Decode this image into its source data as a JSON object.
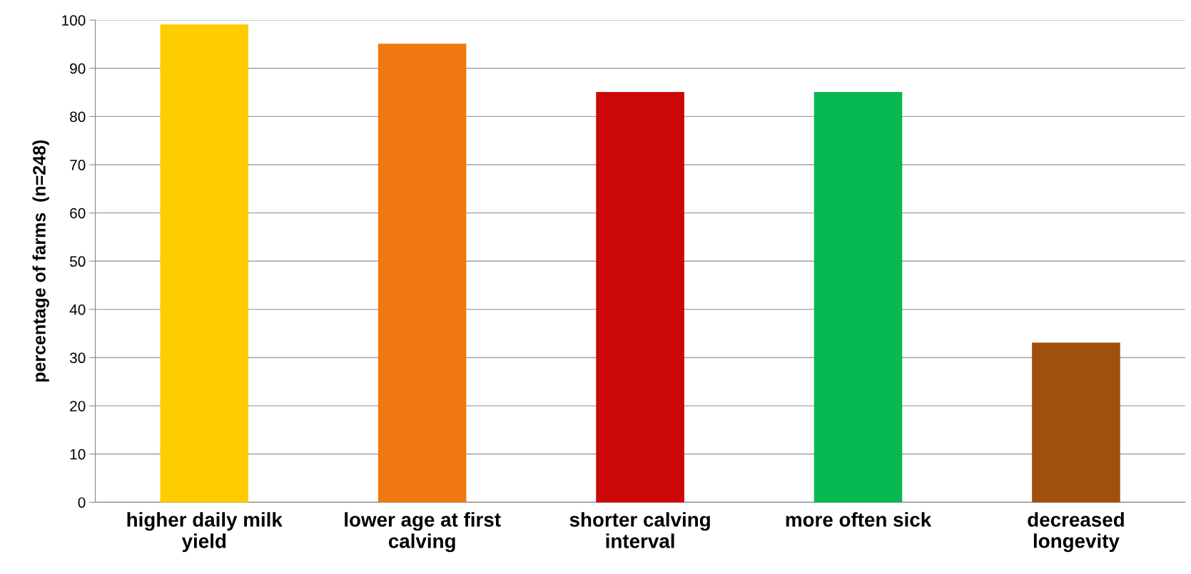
{
  "chart_data": {
    "type": "bar",
    "ylabel": "percentage of farms  (n=248)",
    "categories": [
      "higher daily milk\nyield",
      "lower age at first\ncalving",
      "shorter calving\ninterval",
      "more often sick",
      "decreased\nlongevity"
    ],
    "values": [
      99,
      95,
      85,
      85,
      33
    ],
    "colors": [
      "#ffcc00",
      "#f07810",
      "#cc0808",
      "#08b850",
      "#a0500c"
    ],
    "ylim": [
      0,
      100
    ],
    "yticks": [
      0,
      10,
      20,
      30,
      40,
      50,
      60,
      70,
      80,
      90,
      100
    ],
    "grid": "y"
  }
}
